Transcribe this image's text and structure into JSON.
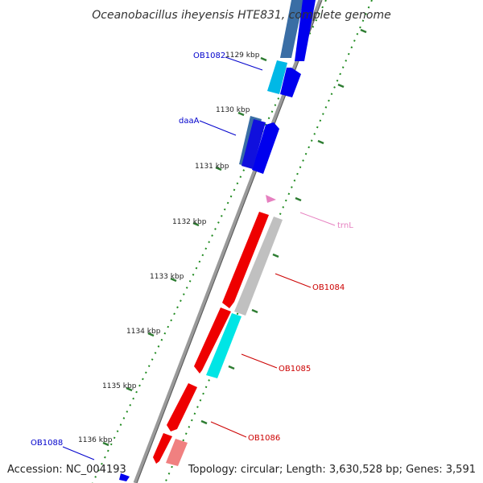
{
  "title": "Oceanobacillus iheyensis HTE831, complete genome",
  "footer": {
    "accession": "Accession: NC_004193",
    "summary": "Topology: circular; Length: 3,630,528 bp; Genes: 3,591"
  },
  "ruler": [
    "1129 kbp",
    "1130 kbp",
    "1131 kbp",
    "1132 kbp",
    "1133 kbp",
    "1134 kbp",
    "1135 kbp",
    "1136 kbp"
  ],
  "gene_labels": {
    "ob1082": "OB1082",
    "daaA": "daaA",
    "trnL": "trnL",
    "ob1084": "OB1084",
    "ob1085": "OB1085",
    "ob1086": "OB1086",
    "ob1088": "OB1088"
  },
  "colors": {
    "backbone": "#8c8c8c",
    "tick_dotted": "#1f8a1f",
    "tick_major": "#2e7d32",
    "forward_gene": "#0000ee",
    "forward_gene_light": "#00b8e6",
    "forward_gene_steel": "#3a6ea5",
    "reverse_gene": "#ee0000",
    "reverse_gene_light": "#f08080",
    "pseudo_gene": "#c0c0c0",
    "cyan_gene": "#00e5e5",
    "trna": "#e680c0",
    "label_blue": "#0000cc",
    "label_red": "#cc0000",
    "label_pink": "#e680c0"
  }
}
